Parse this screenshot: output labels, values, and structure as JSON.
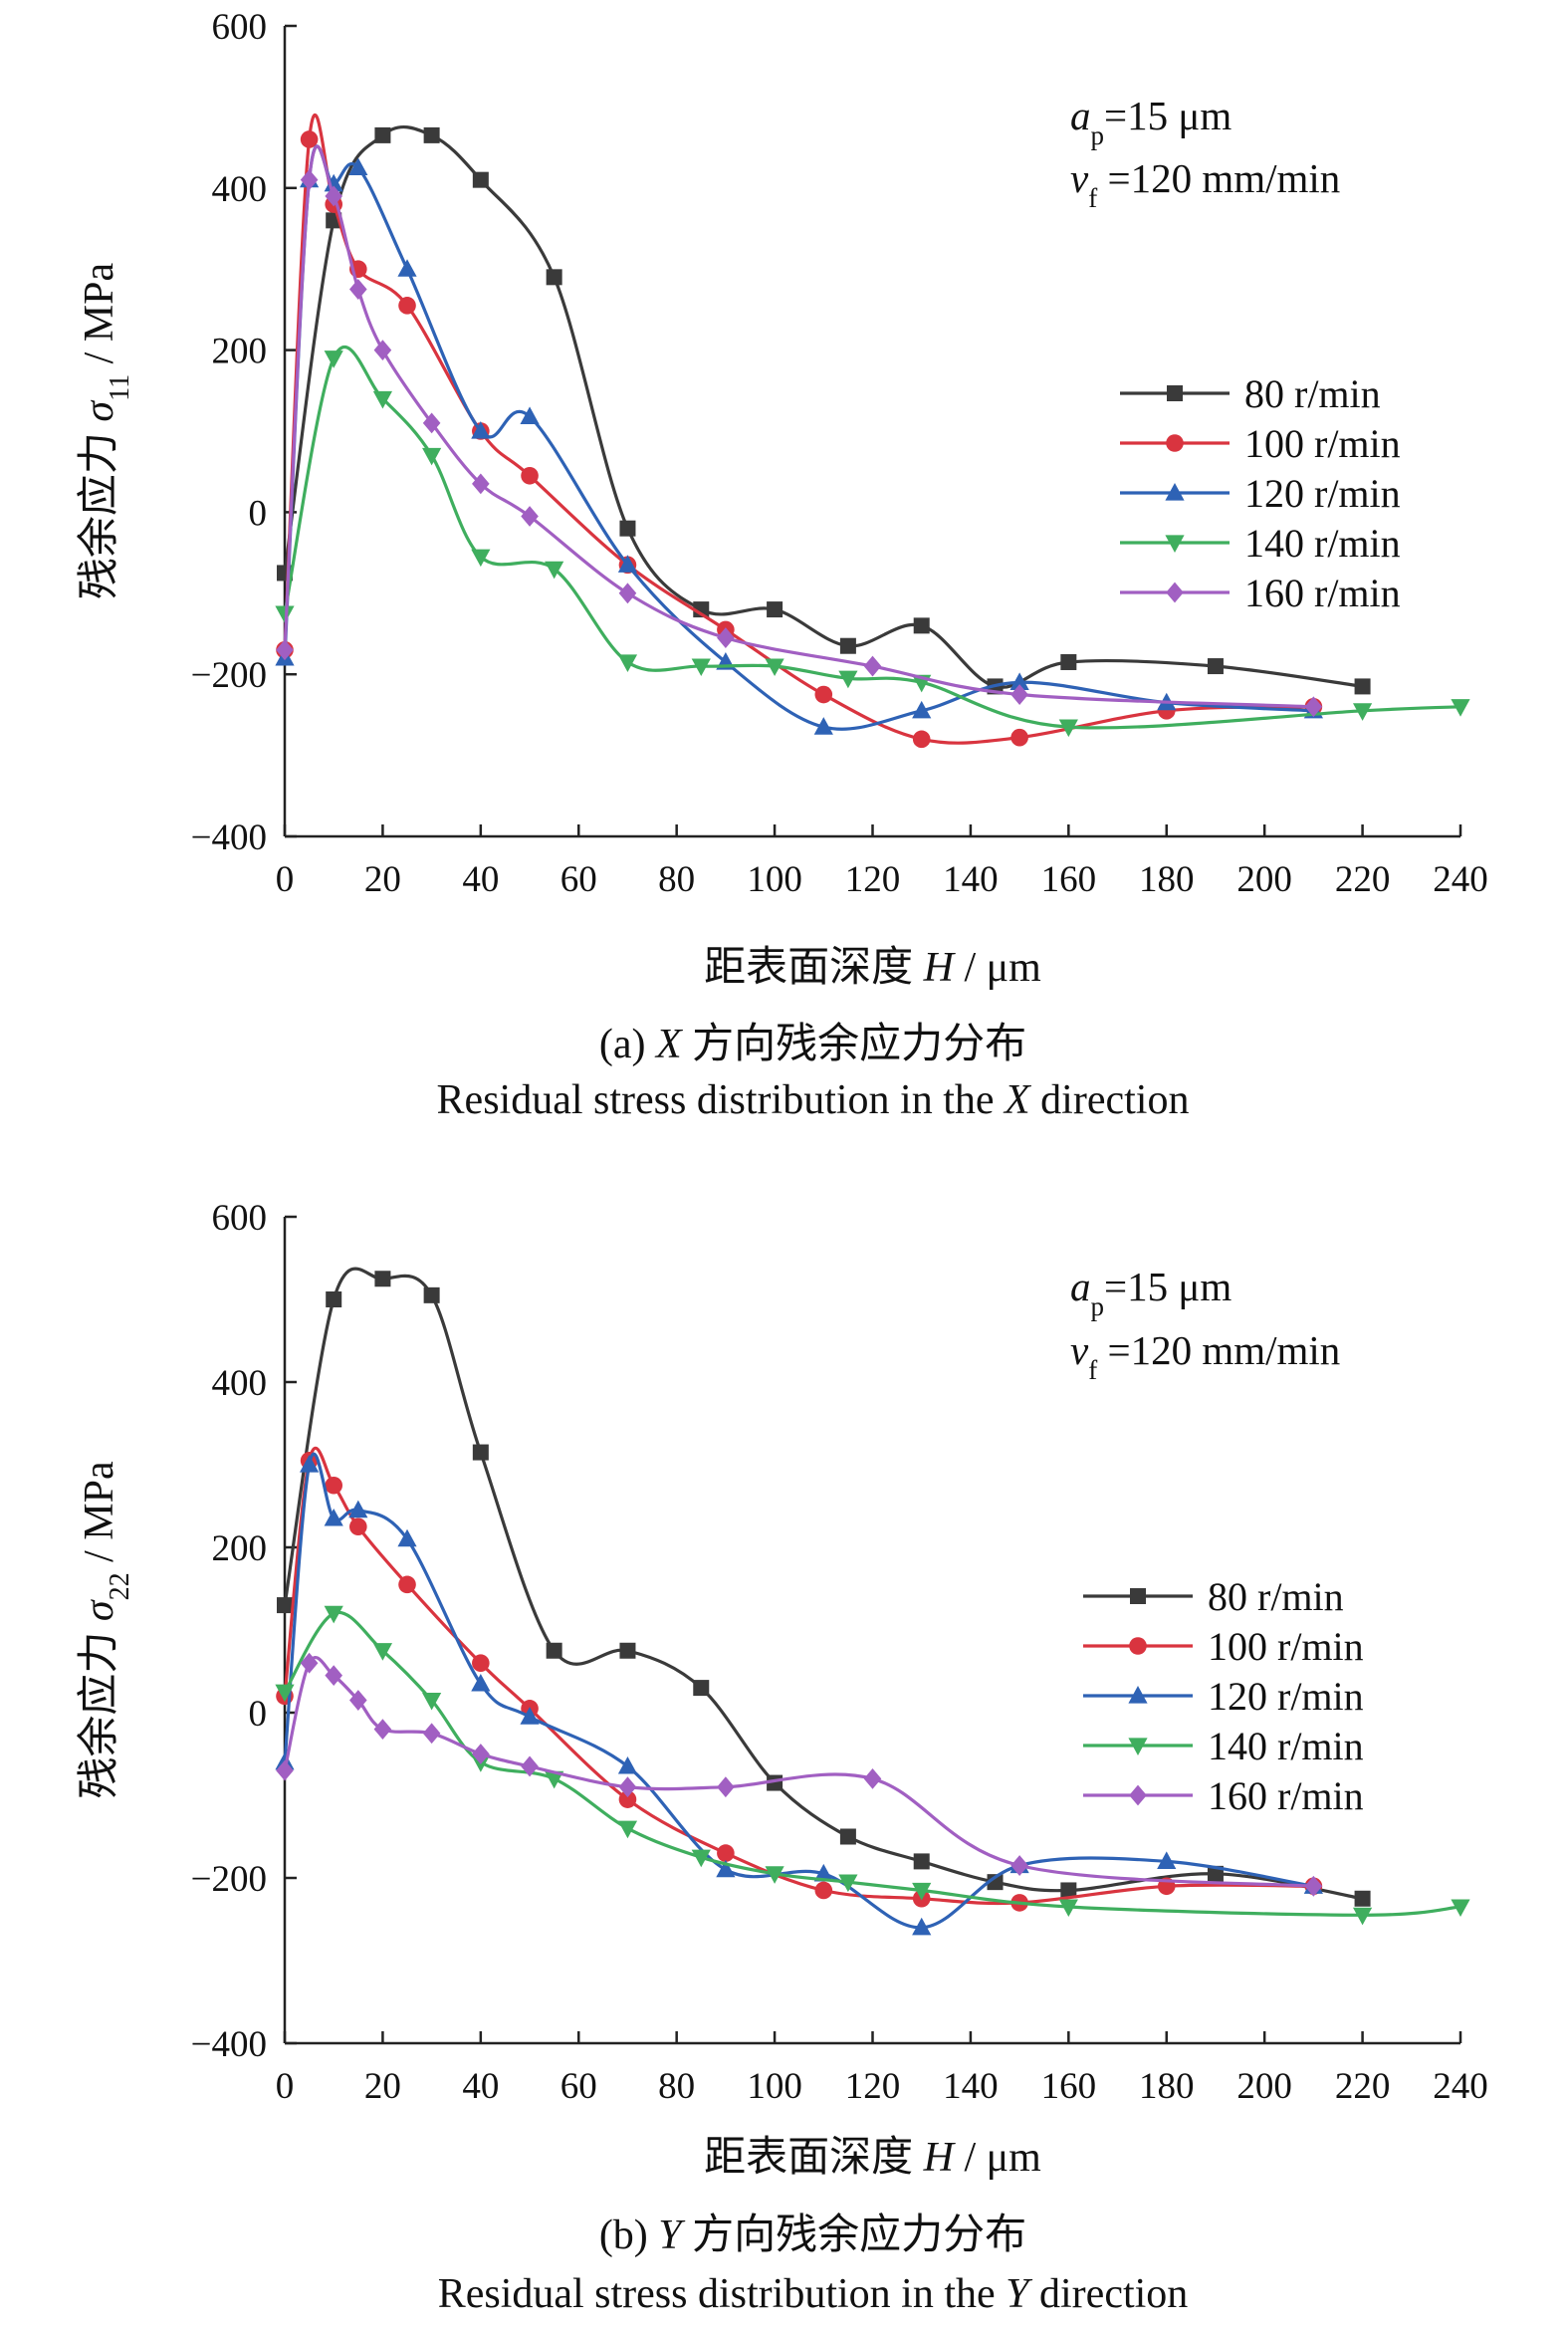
{
  "figure": {
    "panels": [
      {
        "id": "a",
        "caption_zh": "(a) X 方向残余应力分布",
        "caption_en": "Residual stress distribution in the X direction",
        "params": [
          "a_p=15 μm",
          "v_f =120 mm/min"
        ],
        "legend_position": "right",
        "legend_labels": [
          "80 r/min",
          "100 r/min",
          "120 r/min",
          "140 r/min",
          "160 r/min"
        ]
      },
      {
        "id": "b",
        "caption_zh": "(b) Y 方向残余应力分布",
        "caption_en": "Residual stress distribution in the Y direction",
        "params": [
          "a_p=15 μm",
          "v_f =120 mm/min"
        ],
        "legend_position": "right",
        "legend_labels": [
          "80 r/min",
          "100 r/min",
          "120 r/min",
          "140 r/min",
          "160 r/min"
        ]
      }
    ]
  },
  "chart_data": [
    {
      "type": "line",
      "title": "",
      "xlabel": "距表面深度 H / μm",
      "ylabel": "残余应力 σ11 / MPa",
      "xlim": [
        0,
        240
      ],
      "ylim": [
        -400,
        600
      ],
      "xticks": [
        0,
        20,
        40,
        60,
        80,
        100,
        120,
        140,
        160,
        180,
        200,
        220,
        240
      ],
      "yticks": [
        -400,
        -200,
        0,
        200,
        400,
        600
      ],
      "grid": false,
      "legend": "right",
      "series": [
        {
          "name": "80 r/min",
          "color": "#3a3a3a",
          "marker": "square",
          "x": [
            0,
            10,
            20,
            30,
            40,
            55,
            70,
            85,
            100,
            115,
            130,
            145,
            160,
            190,
            220
          ],
          "y": [
            -75,
            360,
            465,
            465,
            410,
            290,
            -20,
            -120,
            -120,
            -165,
            -140,
            -215,
            -185,
            -190,
            -215
          ]
        },
        {
          "name": "100 r/min",
          "color": "#d9343f",
          "marker": "circle",
          "x": [
            0,
            5,
            10,
            15,
            25,
            40,
            50,
            70,
            90,
            110,
            130,
            150,
            180,
            210
          ],
          "y": [
            -170,
            460,
            380,
            300,
            255,
            100,
            45,
            -65,
            -145,
            -225,
            -280,
            -278,
            -245,
            -240
          ]
        },
        {
          "name": "120 r/min",
          "color": "#2e62b5",
          "marker": "triangle-up",
          "x": [
            0,
            5,
            10,
            15,
            25,
            40,
            50,
            70,
            90,
            110,
            130,
            150,
            180,
            210
          ],
          "y": [
            -180,
            410,
            405,
            425,
            300,
            100,
            118,
            -65,
            -185,
            -265,
            -245,
            -210,
            -235,
            -245
          ]
        },
        {
          "name": "140 r/min",
          "color": "#3fae5e",
          "marker": "triangle-down",
          "x": [
            0,
            10,
            20,
            30,
            40,
            55,
            70,
            85,
            100,
            115,
            130,
            160,
            220,
            240
          ],
          "y": [
            -125,
            190,
            140,
            70,
            -55,
            -70,
            -185,
            -190,
            -190,
            -205,
            -210,
            -265,
            -245,
            -240
          ]
        },
        {
          "name": "160 r/min",
          "color": "#a15fc2",
          "marker": "diamond",
          "x": [
            0,
            5,
            10,
            15,
            20,
            30,
            40,
            50,
            70,
            90,
            120,
            150,
            210
          ],
          "y": [
            -170,
            410,
            390,
            275,
            200,
            110,
            35,
            -5,
            -100,
            -155,
            -190,
            -225,
            -240
          ]
        }
      ]
    },
    {
      "type": "line",
      "title": "",
      "xlabel": "距表面深度 H / μm",
      "ylabel": "残余应力 σ22 / MPa",
      "xlim": [
        0,
        240
      ],
      "ylim": [
        -400,
        600
      ],
      "xticks": [
        0,
        20,
        40,
        60,
        80,
        100,
        120,
        140,
        160,
        180,
        200,
        220,
        240
      ],
      "yticks": [
        -400,
        -200,
        0,
        200,
        400,
        600
      ],
      "grid": false,
      "legend": "right",
      "series": [
        {
          "name": "80 r/min",
          "color": "#3a3a3a",
          "marker": "square",
          "x": [
            0,
            10,
            20,
            30,
            40,
            55,
            70,
            85,
            100,
            115,
            130,
            145,
            160,
            190,
            220
          ],
          "y": [
            130,
            500,
            525,
            505,
            315,
            75,
            75,
            30,
            -85,
            -150,
            -180,
            -205,
            -215,
            -195,
            -225
          ]
        },
        {
          "name": "100 r/min",
          "color": "#d9343f",
          "marker": "circle",
          "x": [
            0,
            5,
            10,
            15,
            25,
            40,
            50,
            70,
            90,
            110,
            130,
            150,
            180,
            210
          ],
          "y": [
            20,
            305,
            275,
            225,
            155,
            60,
            5,
            -105,
            -170,
            -215,
            -225,
            -230,
            -210,
            -210
          ]
        },
        {
          "name": "120 r/min",
          "color": "#2e62b5",
          "marker": "triangle-up",
          "x": [
            0,
            5,
            10,
            15,
            25,
            40,
            50,
            70,
            90,
            110,
            130,
            150,
            180,
            210
          ],
          "y": [
            -60,
            300,
            235,
            245,
            210,
            35,
            -5,
            -65,
            -190,
            -195,
            -260,
            -185,
            -180,
            -210
          ]
        },
        {
          "name": "140 r/min",
          "color": "#3fae5e",
          "marker": "triangle-down",
          "x": [
            0,
            10,
            20,
            30,
            40,
            55,
            70,
            85,
            100,
            115,
            130,
            160,
            220,
            240
          ],
          "y": [
            25,
            120,
            75,
            15,
            -60,
            -80,
            -140,
            -175,
            -195,
            -205,
            -215,
            -235,
            -245,
            -235
          ]
        },
        {
          "name": "160 r/min",
          "color": "#a15fc2",
          "marker": "diamond",
          "x": [
            0,
            5,
            10,
            15,
            20,
            30,
            40,
            50,
            70,
            90,
            120,
            150,
            210
          ],
          "y": [
            -70,
            60,
            45,
            15,
            -20,
            -25,
            -50,
            -65,
            -90,
            -90,
            -80,
            -185,
            -210
          ]
        }
      ]
    }
  ]
}
